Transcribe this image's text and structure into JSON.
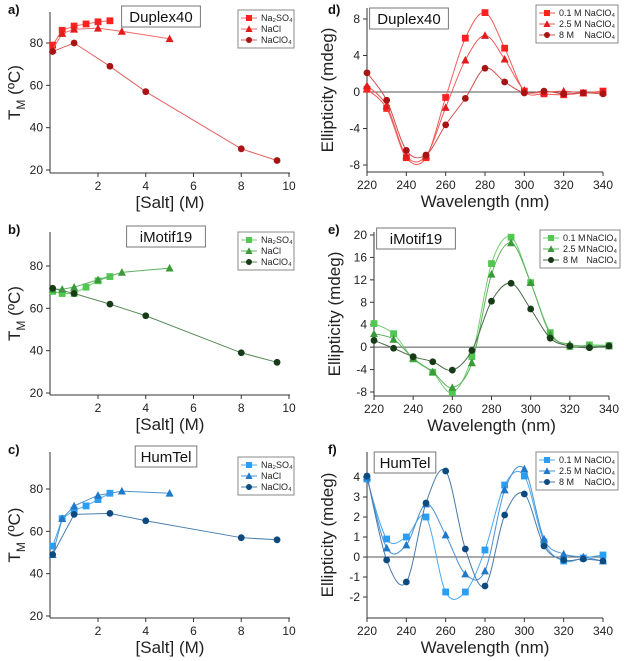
{
  "chart_data": [
    {
      "panel": "a)",
      "title": "Duplex40",
      "type": "line",
      "xlabel": "[Salt] (M)",
      "ylabel": [
        "T",
        "M",
        " (ºC)"
      ],
      "xticks": [
        2,
        4,
        6,
        8,
        10
      ],
      "yticks": [
        20,
        40,
        60,
        80
      ],
      "xlim": [
        0,
        10
      ],
      "ylim": [
        18,
        95
      ],
      "smooth": false,
      "zero_line": false,
      "series": [
        {
          "name": "Na₂SO₄",
          "marker": "square",
          "color": "#ff2020",
          "line": "#f06a6a",
          "x": [
            0.1,
            0.5,
            1,
            1.5,
            2,
            2.5
          ],
          "y": [
            79,
            86,
            88,
            89,
            90,
            90.5
          ]
        },
        {
          "name": "NaCl",
          "marker": "triangle",
          "color": "#e21c1c",
          "line": "#f06a6a",
          "x": [
            0.1,
            0.5,
            1,
            2,
            3,
            5
          ],
          "y": [
            77,
            84.5,
            86.5,
            87,
            85.5,
            82
          ]
        },
        {
          "name": "NaClO₄",
          "marker": "circle",
          "color": "#a81414",
          "line": "#e06060",
          "x": [
            0.1,
            1,
            2.5,
            4,
            8,
            9.5
          ],
          "y": [
            76,
            80,
            69,
            57,
            30,
            24.5
          ]
        }
      ]
    },
    {
      "panel": "b)",
      "title": "iMotif19",
      "type": "line",
      "xlabel": "[Salt] (M)",
      "ylabel": [
        "T",
        "M",
        " (ºC)"
      ],
      "xticks": [
        2,
        4,
        6,
        8,
        10
      ],
      "yticks": [
        20,
        40,
        60,
        80
      ],
      "xlim": [
        0,
        10
      ],
      "ylim": [
        18,
        95
      ],
      "smooth": false,
      "zero_line": false,
      "series": [
        {
          "name": "Na₂SO₄",
          "marker": "square",
          "color": "#52c752",
          "line": "#6fcf6f",
          "x": [
            0.1,
            0.5,
            1,
            1.5,
            2,
            2.5
          ],
          "y": [
            68,
            67,
            67,
            70,
            73,
            75
          ]
        },
        {
          "name": "NaCl",
          "marker": "triangle",
          "color": "#3a9a3a",
          "line": "#5fb05f",
          "x": [
            0.1,
            0.5,
            1,
            2,
            3,
            5
          ],
          "y": [
            69,
            69,
            70,
            73.5,
            77,
            79
          ]
        },
        {
          "name": "NaClO₄",
          "marker": "circle",
          "color": "#173a17",
          "line": "#5a8a5a",
          "x": [
            0.1,
            1,
            2.5,
            4,
            8,
            9.5
          ],
          "y": [
            69.5,
            67,
            62,
            56.5,
            39,
            34.5
          ]
        }
      ]
    },
    {
      "panel": "c)",
      "title": "HumTel",
      "type": "line",
      "xlabel": "[Salt] (M)",
      "ylabel": [
        "T",
        "M",
        " (ºC)"
      ],
      "xticks": [
        2,
        4,
        6,
        8,
        10
      ],
      "yticks": [
        20,
        40,
        60,
        80
      ],
      "xlim": [
        0,
        10
      ],
      "ylim": [
        18,
        95
      ],
      "smooth": false,
      "zero_line": false,
      "series": [
        {
          "name": "Na₂SO₄",
          "marker": "square",
          "color": "#2a9df4",
          "line": "#4aaaf0",
          "x": [
            0.1,
            0.5,
            1,
            1.5,
            2,
            2.5
          ],
          "y": [
            53,
            66,
            70,
            72,
            75,
            78
          ]
        },
        {
          "name": "NaCl",
          "marker": "triangle",
          "color": "#1f78c8",
          "line": "#4a90d0",
          "x": [
            0.1,
            0.5,
            1,
            2,
            3,
            5
          ],
          "y": [
            49,
            66,
            72,
            77,
            79,
            78
          ]
        },
        {
          "name": "NaClO₄",
          "marker": "circle",
          "color": "#0d4a80",
          "line": "#4a80b0",
          "x": [
            0.1,
            1,
            2.5,
            4,
            8,
            9.5
          ],
          "y": [
            49,
            68,
            68.5,
            65,
            57,
            56
          ]
        }
      ]
    },
    {
      "panel": "d)",
      "title": "Duplex40",
      "type": "line",
      "xlabel": "Wavelength (nm)",
      "ylabel": [
        "Ellipticity (mdeg)"
      ],
      "legend_suffix": "NaClO₄",
      "xticks": [
        220,
        240,
        260,
        280,
        300,
        320,
        340
      ],
      "yticks": [
        -8,
        -4,
        0,
        4,
        8
      ],
      "xlim": [
        220,
        340
      ],
      "ylim": [
        -8.8,
        9.3
      ],
      "smooth": true,
      "zero_line": true,
      "series": [
        {
          "name": "0.1 M",
          "marker": "square",
          "color": "#ff2020",
          "line": "#f05a5a",
          "x": [
            220,
            230,
            240,
            250,
            260,
            270,
            280,
            290,
            300,
            310,
            320,
            330,
            340
          ],
          "y": [
            0.3,
            -1.8,
            -7.2,
            -7.2,
            -0.6,
            5.9,
            8.7,
            4.8,
            0.1,
            -0.2,
            -0.3,
            -0.1,
            0.1
          ]
        },
        {
          "name": "2.5 M",
          "marker": "triangle",
          "color": "#e21c1c",
          "line": "#f05a5a",
          "x": [
            220,
            230,
            240,
            250,
            260,
            270,
            280,
            290,
            300,
            310,
            320,
            330,
            340
          ],
          "y": [
            0.7,
            -1.5,
            -7.0,
            -7.0,
            -1.7,
            3.5,
            6.2,
            3.6,
            0.2,
            0.0,
            0.1,
            -0.1,
            0.0
          ]
        },
        {
          "name": "8 M",
          "marker": "circle",
          "color": "#a81414",
          "line": "#d05050",
          "x": [
            220,
            230,
            240,
            250,
            260,
            270,
            280,
            290,
            300,
            310,
            320,
            330,
            340
          ],
          "y": [
            2.1,
            -0.9,
            -6.4,
            -6.9,
            -3.6,
            -0.7,
            2.6,
            1.1,
            -0.1,
            0.1,
            -0.2,
            -0.1,
            -0.2
          ]
        }
      ]
    },
    {
      "panel": "e)",
      "title": "iMotif19",
      "type": "line",
      "xlabel": "Wavelength (nm)",
      "ylabel": [
        "Ellipticity (mdeg)"
      ],
      "legend_suffix": "NaClO₄",
      "xticks": [
        220,
        240,
        260,
        280,
        300,
        320,
        340
      ],
      "yticks": [
        -8,
        -4,
        0,
        4,
        8,
        12,
        16,
        20
      ],
      "xlim": [
        220,
        340
      ],
      "ylim": [
        -8.7,
        20.5
      ],
      "smooth": true,
      "zero_line": true,
      "series": [
        {
          "name": "0.1 M",
          "marker": "square",
          "color": "#52c752",
          "line": "#6fcf6f",
          "x": [
            220,
            230,
            240,
            250,
            260,
            270,
            280,
            290,
            300,
            310,
            320,
            330,
            340
          ],
          "y": [
            4.2,
            2.4,
            -2.1,
            -4.5,
            -8.1,
            -1.7,
            14.9,
            19.6,
            11.5,
            2.6,
            0.1,
            0.4,
            0.3
          ]
        },
        {
          "name": "2.5 M",
          "marker": "triangle",
          "color": "#3a9a3a",
          "line": "#5fb05f",
          "x": [
            220,
            230,
            240,
            250,
            260,
            270,
            280,
            290,
            300,
            310,
            320,
            330,
            340
          ],
          "y": [
            2.4,
            1.4,
            -2.0,
            -4.4,
            -7.2,
            -2.8,
            13.0,
            18.6,
            11.5,
            2.3,
            0.5,
            0.2,
            0.2
          ]
        },
        {
          "name": "8 M",
          "marker": "circle",
          "color": "#173a17",
          "line": "#4a6a4a",
          "x": [
            220,
            230,
            240,
            250,
            260,
            270,
            280,
            290,
            300,
            310,
            320,
            330,
            340
          ],
          "y": [
            1.2,
            -0.2,
            -1.7,
            -2.6,
            -4.1,
            -0.6,
            8.2,
            11.4,
            6.8,
            1.6,
            0.2,
            -0.1,
            0.2
          ]
        }
      ]
    },
    {
      "panel": "f)",
      "title": "HumTel",
      "type": "line",
      "xlabel": "Wavelength (nm)",
      "ylabel": [
        "Ellipticity (mdeg)"
      ],
      "legend_suffix": "NaClO₄",
      "xticks": [
        220,
        240,
        260,
        280,
        300,
        320,
        340
      ],
      "yticks": [
        -2,
        -1,
        0,
        1,
        2,
        3,
        4
      ],
      "xlim": [
        220,
        340
      ],
      "ylim": [
        -3.05,
        4.85
      ],
      "smooth": true,
      "zero_line": true,
      "series": [
        {
          "name": "0.1 M",
          "marker": "square",
          "color": "#2a9df4",
          "line": "#4aaaf0",
          "x": [
            220,
            230,
            240,
            250,
            260,
            270,
            280,
            290,
            300,
            310,
            320,
            330,
            340
          ],
          "y": [
            3.9,
            0.9,
            1.0,
            2.0,
            -1.75,
            -1.75,
            0.35,
            3.6,
            4.05,
            0.75,
            -0.2,
            -0.05,
            0.1
          ]
        },
        {
          "name": "2.5 M",
          "marker": "triangle",
          "color": "#1f78c8",
          "line": "#4a90d0",
          "x": [
            220,
            230,
            240,
            250,
            260,
            270,
            280,
            290,
            300,
            310,
            320,
            330,
            340
          ],
          "y": [
            4.0,
            0.45,
            0.6,
            2.65,
            1.1,
            -0.85,
            -0.7,
            3.35,
            4.4,
            0.9,
            0.15,
            0.0,
            -0.2
          ]
        },
        {
          "name": "8 M",
          "marker": "circle",
          "color": "#0d4a80",
          "line": "#4a78a8",
          "x": [
            220,
            230,
            240,
            250,
            260,
            270,
            280,
            290,
            300,
            310,
            320,
            330,
            340
          ],
          "y": [
            4.05,
            -0.15,
            -1.25,
            2.7,
            4.3,
            0.4,
            -1.45,
            2.1,
            3.15,
            0.55,
            -0.15,
            -0.1,
            -0.2
          ]
        }
      ]
    }
  ]
}
